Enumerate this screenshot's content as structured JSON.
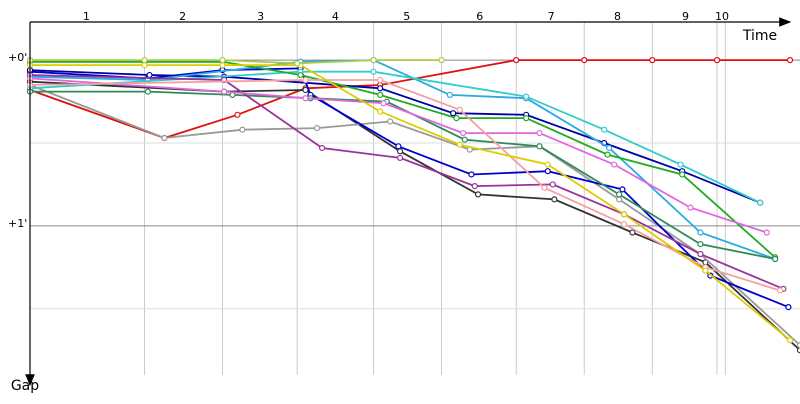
{
  "chart_data": {
    "type": "line",
    "x_label": "Time",
    "y_label": "Gap",
    "xlim": [
      0,
      4.64
    ],
    "ylim": [
      -0.23,
      1.96
    ],
    "xticks": [
      {
        "value": 0.34,
        "label": "1"
      },
      {
        "value": 0.92,
        "label": "2"
      },
      {
        "value": 1.39,
        "label": "3"
      },
      {
        "value": 1.84,
        "label": "4"
      },
      {
        "value": 2.27,
        "label": "5"
      },
      {
        "value": 2.71,
        "label": "6"
      },
      {
        "value": 3.14,
        "label": "7"
      },
      {
        "value": 3.54,
        "label": "8"
      },
      {
        "value": 3.95,
        "label": "9"
      },
      {
        "value": 4.17,
        "label": "10"
      }
    ],
    "xgrid": [
      0.69,
      1.16,
      1.61,
      2.07,
      2.48,
      2.93,
      3.34,
      3.75,
      4.14,
      4.19
    ],
    "yticks": [
      {
        "value": 0,
        "label": "+0'"
      },
      {
        "value": 1,
        "label": "+1'"
      }
    ],
    "ygrid": [
      0,
      0.5,
      1,
      1.5
    ],
    "series": [
      {
        "color": "#e01010",
        "x": [
          0,
          0.81,
          1.25,
          1.66,
          2.11,
          2.93,
          3.34,
          3.75,
          4.14,
          4.58
        ],
        "values": [
          0.18,
          0.47,
          0.33,
          0.17,
          0.15,
          0,
          0,
          0,
          0,
          0
        ]
      },
      {
        "color": "#333333",
        "x": [
          0,
          1.17,
          1.66,
          2.23,
          2.7,
          3.16,
          3.63,
          4.07,
          4.64
        ],
        "values": [
          0.13,
          0.19,
          0.18,
          0.55,
          0.81,
          0.84,
          1.04,
          1.22,
          1.75
        ]
      },
      {
        "color": "#999999",
        "x": [
          0,
          0.81,
          1.28,
          1.73,
          2.17,
          2.65,
          3.07,
          3.55,
          4.04,
          4.64
        ],
        "values": [
          0.15,
          0.47,
          0.42,
          0.41,
          0.37,
          0.54,
          0.52,
          0.84,
          1.17,
          1.72
        ]
      },
      {
        "color": "#0000cc",
        "x": [
          0,
          0.71,
          1.16,
          1.63,
          1.69,
          2.22,
          2.66,
          3.12,
          3.57,
          4.1,
          4.57
        ],
        "values": [
          0.07,
          0.11,
          0.06,
          0.05,
          0.21,
          0.52,
          0.69,
          0.67,
          0.78,
          1.3,
          1.49
        ]
      },
      {
        "color": "#0000aa",
        "x": [
          0,
          0.72,
          1.17,
          2.11,
          2.55,
          2.99,
          3.46,
          3.93,
          4.4
        ],
        "values": [
          0.06,
          0.09,
          0.1,
          0.17,
          0.32,
          0.33,
          0.5,
          0.67,
          0.86
        ]
      },
      {
        "color": "#29abe2",
        "x": [
          0,
          0.71,
          1.63,
          2.07,
          2.53,
          2.99,
          3.49,
          4.04,
          4.49
        ],
        "values": [
          0.1,
          0.12,
          0.01,
          0,
          0.21,
          0.23,
          0.53,
          1.04,
          1.2
        ]
      },
      {
        "color": "#33cccc",
        "x": [
          0,
          1.63,
          2.07,
          2.99,
          3.46,
          3.92,
          4.4
        ],
        "values": [
          0.17,
          0.07,
          0.07,
          0.22,
          0.42,
          0.63,
          0.86
        ]
      },
      {
        "color": "#22aa22",
        "x": [
          0,
          0.69,
          1.16,
          1.63,
          2.11,
          2.57,
          2.99,
          3.48,
          3.93,
          4.49
        ],
        "values": [
          0.01,
          0.01,
          0.01,
          0.09,
          0.21,
          0.35,
          0.35,
          0.57,
          0.69,
          1.19
        ]
      },
      {
        "color": "#2e8b57",
        "x": [
          0,
          0.71,
          1.22,
          1.69,
          2.15,
          2.62,
          3.07,
          3.55,
          4.04,
          4.49
        ],
        "values": [
          0.19,
          0.19,
          0.21,
          0.23,
          0.25,
          0.48,
          0.52,
          0.81,
          1.11,
          1.2
        ]
      },
      {
        "color": "#993399",
        "x": [
          0,
          1.17,
          1.76,
          2.23,
          2.68,
          3.15,
          3.58,
          4.04,
          4.54
        ],
        "values": [
          0.09,
          0.12,
          0.53,
          0.59,
          0.76,
          0.75,
          0.93,
          1.17,
          1.38
        ]
      },
      {
        "color": "#e066e0",
        "x": [
          0,
          1.17,
          1.66,
          2.13,
          2.61,
          3.07,
          3.52,
          3.98,
          4.44
        ],
        "values": [
          0.11,
          0.19,
          0.23,
          0.26,
          0.44,
          0.44,
          0.63,
          0.89,
          1.04
        ]
      },
      {
        "color": "#f4a0a0",
        "x": [
          0,
          1.66,
          2.11,
          2.59,
          3.1,
          3.58,
          4.07,
          4.52
        ],
        "values": [
          0.15,
          0.12,
          0.12,
          0.3,
          0.77,
          0.99,
          1.25,
          1.39
        ]
      },
      {
        "color": "#ddcc00",
        "x": [
          0,
          0.69,
          1.16,
          1.63,
          2.11,
          2.59,
          3.12,
          3.58,
          4.07,
          4.58
        ],
        "values": [
          0.03,
          0.03,
          0.03,
          0.03,
          0.31,
          0.51,
          0.63,
          0.93,
          1.27,
          1.69
        ]
      },
      {
        "color": "#aacc44",
        "x": [
          0,
          0.69,
          1.16,
          1.61,
          2.07,
          2.48
        ],
        "values": [
          0,
          0,
          0,
          0.02,
          0,
          0
        ]
      }
    ]
  }
}
